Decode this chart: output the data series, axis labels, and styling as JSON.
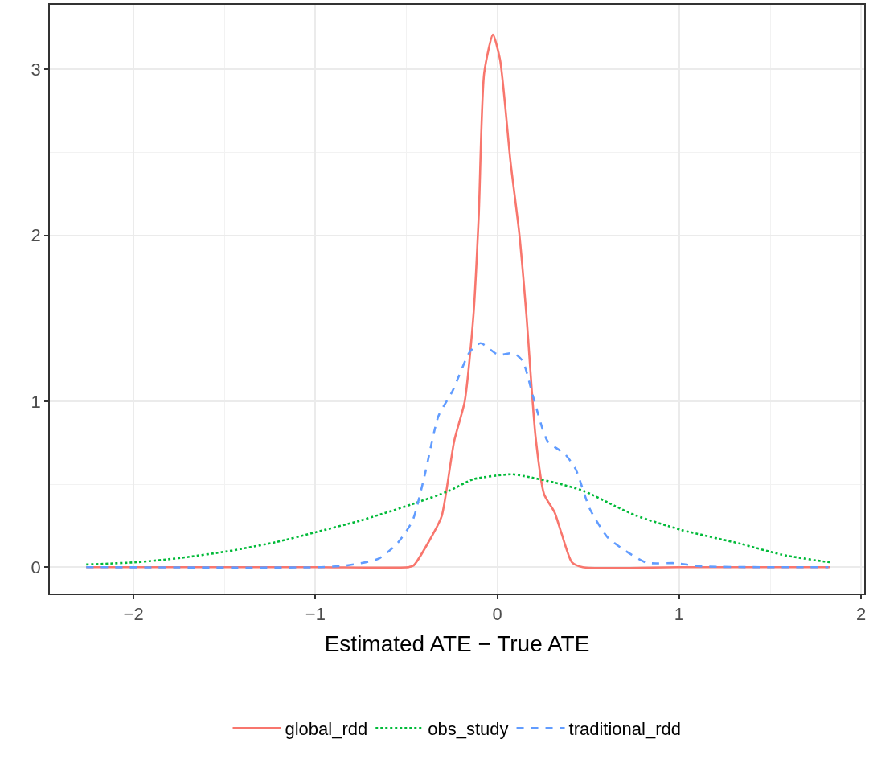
{
  "chart_data": {
    "type": "line",
    "xlabel": "Estimated ATE − True ATE",
    "xlim": [
      -2.46,
      2.017
    ],
    "ylim": [
      -0.159,
      3.39
    ],
    "xticks": [
      -2,
      -1,
      0,
      1,
      2
    ],
    "yticks": [
      0,
      1,
      2,
      3
    ],
    "grid": true,
    "legend": "bottom",
    "series": [
      {
        "name": "global_rdd",
        "color": "#f8766d",
        "line_style": "solid",
        "x": [
          -2.26,
          -1.0,
          -0.49,
          -0.46,
          -0.353,
          -0.305,
          -0.237,
          -0.179,
          -0.131,
          -0.102,
          -0.072,
          -0.024,
          0.015,
          0.073,
          0.121,
          0.16,
          0.21,
          0.257,
          0.315,
          0.354,
          0.41,
          0.47,
          1.0,
          1.83
        ],
        "values": [
          0,
          0,
          0,
          0.01,
          0.2,
          0.31,
          0.76,
          1.0,
          1.52,
          2.12,
          2.98,
          3.21,
          3.06,
          2.44,
          2.01,
          1.52,
          0.79,
          0.44,
          0.33,
          0.2,
          0.03,
          0,
          0,
          0
        ]
      },
      {
        "name": "obs_study",
        "color": "#00ba38",
        "line_style": "dotted",
        "x": [
          -2.26,
          -1.98,
          -1.74,
          -1.48,
          -1.22,
          -1.0,
          -0.755,
          -0.466,
          -0.265,
          -0.131,
          0.08,
          0.142,
          0.315,
          0.474,
          0.644,
          0.764,
          1.01,
          1.34,
          1.56,
          1.79,
          1.83
        ],
        "values": [
          0.016,
          0.03,
          0.056,
          0.096,
          0.15,
          0.21,
          0.28,
          0.38,
          0.46,
          0.53,
          0.56,
          0.55,
          0.51,
          0.46,
          0.37,
          0.31,
          0.225,
          0.14,
          0.076,
          0.035,
          0.03
        ]
      },
      {
        "name": "traditional_rdd",
        "color": "#619cff",
        "line_style": "dashed",
        "x": [
          -2.26,
          -0.97,
          -0.83,
          -0.655,
          -0.552,
          -0.466,
          -0.4,
          -0.324,
          -0.247,
          -0.15,
          -0.092,
          0.005,
          0.092,
          0.141,
          0.199,
          0.276,
          0.373,
          0.431,
          0.509,
          0.606,
          0.702,
          0.82,
          0.98,
          1.12,
          1.82
        ],
        "values": [
          0,
          0,
          0.01,
          0.05,
          0.14,
          0.28,
          0.55,
          0.91,
          1.06,
          1.3,
          1.35,
          1.28,
          1.29,
          1.24,
          1.02,
          0.76,
          0.68,
          0.59,
          0.35,
          0.18,
          0.1,
          0.027,
          0.024,
          0.005,
          0
        ]
      }
    ]
  }
}
